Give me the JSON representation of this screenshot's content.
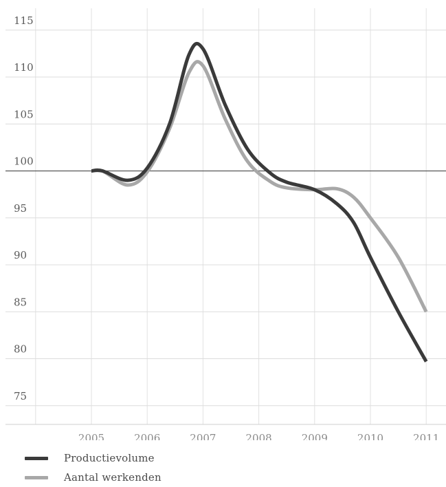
{
  "chart_data": {
    "type": "line",
    "x": [
      "2005",
      "2006",
      "2007",
      "2008",
      "2009",
      "2010",
      "2011"
    ],
    "xlim": [
      2004.5,
      2011.3
    ],
    "ylim": [
      73,
      116
    ],
    "yticks": [
      115,
      110,
      105,
      100,
      95,
      90,
      85,
      80,
      75
    ],
    "grid": true,
    "reference_line": 100,
    "legend_position": "bottom-left",
    "series": [
      {
        "name": "Productievolume",
        "color": "#3a3a3a",
        "points": [
          [
            2005,
            100
          ],
          [
            2005.2,
            100
          ],
          [
            2005.65,
            99
          ],
          [
            2006,
            100.3
          ],
          [
            2006.4,
            105
          ],
          [
            2006.75,
            112.4
          ],
          [
            2007,
            113
          ],
          [
            2007.4,
            107
          ],
          [
            2007.8,
            102.3
          ],
          [
            2008.2,
            99.8
          ],
          [
            2008.5,
            98.8
          ],
          [
            2009,
            98
          ],
          [
            2009.4,
            96.5
          ],
          [
            2009.7,
            94.5
          ],
          [
            2010,
            90.8
          ],
          [
            2010.5,
            85
          ],
          [
            2011,
            79.7
          ]
        ]
      },
      {
        "name": "Aantal werkenden",
        "color": "#a8a8a8",
        "points": [
          [
            2005,
            100
          ],
          [
            2005.2,
            100
          ],
          [
            2005.65,
            98.5
          ],
          [
            2006,
            99.9
          ],
          [
            2006.4,
            104.5
          ],
          [
            2006.75,
            110.5
          ],
          [
            2007,
            111.2
          ],
          [
            2007.4,
            105.5
          ],
          [
            2007.8,
            101
          ],
          [
            2008.2,
            98.9
          ],
          [
            2008.5,
            98.2
          ],
          [
            2009,
            98
          ],
          [
            2009.4,
            98.1
          ],
          [
            2009.7,
            97.2
          ],
          [
            2010,
            95
          ],
          [
            2010.5,
            90.8
          ],
          [
            2011,
            85
          ]
        ]
      }
    ]
  }
}
